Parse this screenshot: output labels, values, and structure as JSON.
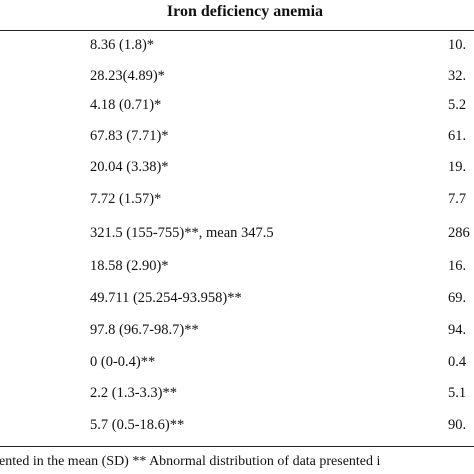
{
  "table": {
    "header": "Iron deficiency anemia",
    "rows": [
      [
        "8.36 (1.8)*",
        "10."
      ],
      [
        "28.23(4.89)*",
        "32."
      ],
      [
        "4.18 (0.71)*",
        "5.2"
      ],
      [
        "67.83 (7.71)*",
        "61."
      ],
      [
        "20.04 (3.38)*",
        "19."
      ],
      [
        "7.72 (1.57)*",
        "7.7"
      ],
      [
        "321.5 (155-755)**, mean 347.5",
        "286"
      ],
      [
        "18.58 (2.90)*",
        "16."
      ],
      [
        "49.711 (25.254-93.958)**",
        "69."
      ],
      [
        "97.8 (96.7-98.7)**",
        "94."
      ],
      [
        "0 (0-0.4)**",
        "0.4"
      ],
      [
        "2.2 (1.3-3.3)**",
        "5.1"
      ],
      [
        "5.7 (0.5-18.6)**",
        "90."
      ]
    ],
    "footnote": "ented in the mean (SD) ** Abnormal distribution of data presented i"
  }
}
